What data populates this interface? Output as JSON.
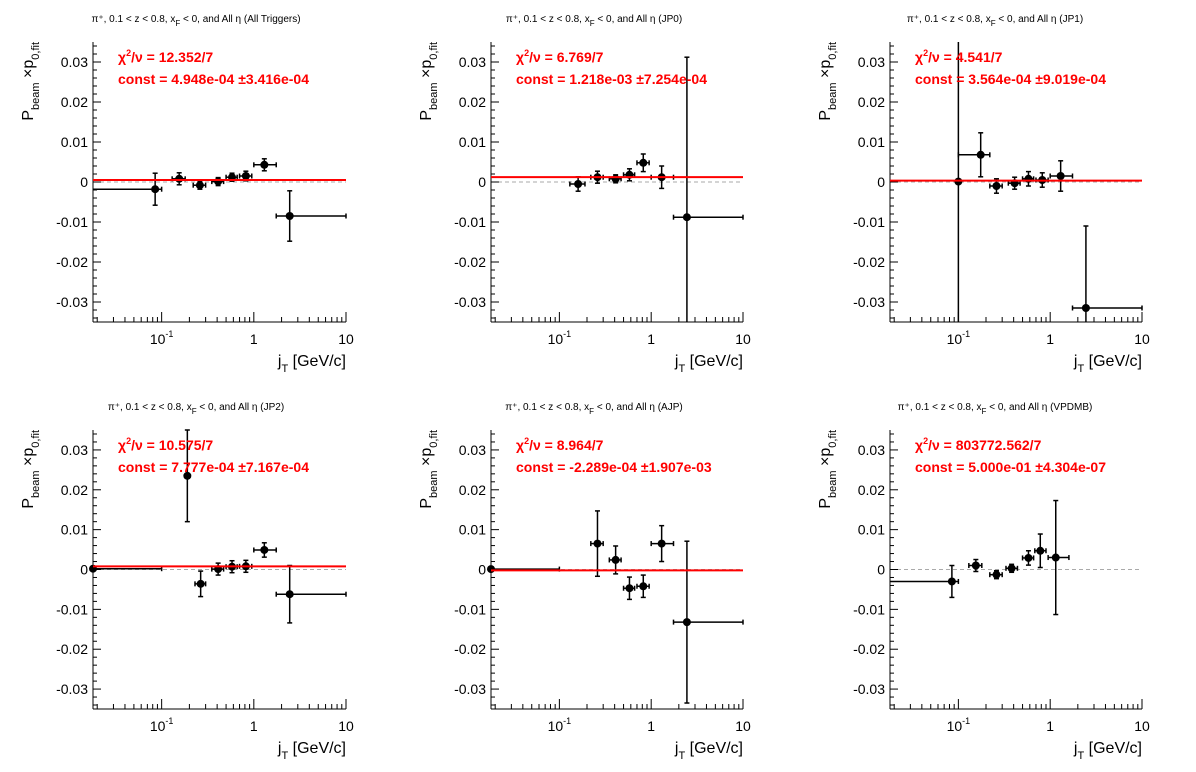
{
  "colors": {
    "axis": "#000000",
    "points": "#000000",
    "fit": "#ff0000",
    "zero_line": "#aaaaaa",
    "fit_text": "#ff0000",
    "background": "#ffffff"
  },
  "chart_data": [
    {
      "type": "scatter",
      "title": "π⁺, 0.1 < z < 0.8, x_F < 0, and All η (All Triggers)",
      "title_parts": {
        "prefix": "π⁺, 0.1 < z < 0.8, x",
        "sub": "F",
        "suffix": " < 0, and All  η (All Triggers)"
      },
      "xlabel": "j_T [GeV/c]",
      "ylabel": "P_beam × p_0,fit",
      "x_scale": "log",
      "xlim": [
        0.018,
        10
      ],
      "ylim": [
        -0.035,
        0.035
      ],
      "x_ticks": [
        "10⁻¹",
        "1",
        "10"
      ],
      "y_ticks": [
        "-0.03",
        "-0.02",
        "-0.01",
        "0",
        "0.01",
        "0.02",
        "0.03"
      ],
      "fit_text": {
        "chi2": "χ²/ν = 12.352/7",
        "const": "const = 4.948e-04  ±3.416e-04"
      },
      "fit_value": 0.0004948,
      "points": [
        {
          "x": 0.085,
          "xlo": 0.018,
          "xhi": 0.1,
          "y": -0.0018,
          "ey": 0.004
        },
        {
          "x": 0.155,
          "xlo": 0.13,
          "xhi": 0.18,
          "y": 0.0008,
          "ey": 0.0015
        },
        {
          "x": 0.26,
          "xlo": 0.22,
          "xhi": 0.3,
          "y": -0.0008,
          "ey": 0.001
        },
        {
          "x": 0.41,
          "xlo": 0.35,
          "xhi": 0.47,
          "y": 0.0001,
          "ey": 0.001
        },
        {
          "x": 0.58,
          "xlo": 0.5,
          "xhi": 0.66,
          "y": 0.0012,
          "ey": 0.001
        },
        {
          "x": 0.82,
          "xlo": 0.7,
          "xhi": 0.95,
          "y": 0.0015,
          "ey": 0.0012
        },
        {
          "x": 1.3,
          "xlo": 1.0,
          "xhi": 1.75,
          "y": 0.0043,
          "ey": 0.0015
        },
        {
          "x": 2.45,
          "xlo": 1.75,
          "xhi": 10,
          "y": -0.0085,
          "ey": 0.0063
        }
      ]
    },
    {
      "type": "scatter",
      "title": "π⁺, 0.1 < z < 0.8, x_F < 0, and All η (JP0)",
      "title_parts": {
        "prefix": "π⁺, 0.1 < z < 0.8, x",
        "sub": "F",
        "suffix": " < 0, and All  η (JP0)"
      },
      "xlabel": "j_T [GeV/c]",
      "ylabel": "P_beam × p_0,fit",
      "x_scale": "log",
      "xlim": [
        0.018,
        10
      ],
      "ylim": [
        -0.035,
        0.035
      ],
      "x_ticks": [
        "10⁻¹",
        "1",
        "10"
      ],
      "y_ticks": [
        "-0.03",
        "-0.02",
        "-0.01",
        "0",
        "0.01",
        "0.02",
        "0.03"
      ],
      "fit_text": {
        "chi2": "χ²/ν = 6.769/7",
        "const": "const = 1.218e-03  ±7.254e-04"
      },
      "fit_value": 0.001218,
      "points": [
        {
          "x": 0.16,
          "xlo": 0.13,
          "xhi": 0.19,
          "y": -0.0005,
          "ey": 0.0018
        },
        {
          "x": 0.26,
          "xlo": 0.22,
          "xhi": 0.3,
          "y": 0.0012,
          "ey": 0.0015
        },
        {
          "x": 0.41,
          "xlo": 0.35,
          "xhi": 0.47,
          "y": 0.0008,
          "ey": 0.001
        },
        {
          "x": 0.58,
          "xlo": 0.5,
          "xhi": 0.66,
          "y": 0.0018,
          "ey": 0.0015
        },
        {
          "x": 0.82,
          "xlo": 0.7,
          "xhi": 0.95,
          "y": 0.0048,
          "ey": 0.0022
        },
        {
          "x": 1.3,
          "xlo": 1.0,
          "xhi": 1.75,
          "y": 0.0012,
          "ey": 0.0028
        },
        {
          "x": 2.45,
          "xlo": 1.75,
          "xhi": 10,
          "y": -0.0088,
          "ey": 0.04
        }
      ]
    },
    {
      "type": "scatter",
      "title": "π⁺, 0.1 < z < 0.8, x_F < 0, and All η (JP1)",
      "title_parts": {
        "prefix": "π⁺, 0.1 < z < 0.8, x",
        "sub": "F",
        "suffix": " < 0, and All  η (JP1)"
      },
      "xlabel": "j_T [GeV/c]",
      "ylabel": "P_beam × p_0,fit",
      "x_scale": "log",
      "xlim": [
        0.018,
        10
      ],
      "ylim": [
        -0.035,
        0.035
      ],
      "x_ticks": [
        "10⁻¹",
        "1",
        "10"
      ],
      "y_ticks": [
        "-0.03",
        "-0.02",
        "-0.01",
        "0",
        "0.01",
        "0.02",
        "0.03"
      ],
      "fit_text": {
        "chi2": "χ²/ν = 4.541/7",
        "const": "const = 3.564e-04  ±9.019e-04"
      },
      "fit_value": 0.0003564,
      "points": [
        {
          "x": 0.1,
          "xlo": 0.1,
          "xhi": 0.1,
          "y": 0.0001,
          "ey": 0.04
        },
        {
          "x": 0.175,
          "xlo": 0.1,
          "xhi": 0.22,
          "y": 0.0068,
          "ey": 0.0055
        },
        {
          "x": 0.26,
          "xlo": 0.22,
          "xhi": 0.3,
          "y": -0.001,
          "ey": 0.0018
        },
        {
          "x": 0.41,
          "xlo": 0.35,
          "xhi": 0.47,
          "y": -0.0003,
          "ey": 0.0015
        },
        {
          "x": 0.58,
          "xlo": 0.5,
          "xhi": 0.66,
          "y": 0.0008,
          "ey": 0.0018
        },
        {
          "x": 0.82,
          "xlo": 0.7,
          "xhi": 0.95,
          "y": 0.0005,
          "ey": 0.0018
        },
        {
          "x": 1.3,
          "xlo": 1.0,
          "xhi": 1.75,
          "y": 0.0015,
          "ey": 0.0038
        },
        {
          "x": 2.45,
          "xlo": 1.75,
          "xhi": 10,
          "y": -0.0315,
          "ey": 0.0205
        }
      ]
    },
    {
      "type": "scatter",
      "title": "π⁺, 0.1 < z < 0.8, x_F < 0, and All η (JP2)",
      "title_parts": {
        "prefix": "π⁺, 0.1 < z < 0.8, x",
        "sub": "F",
        "suffix": " < 0, and All  η (JP2)"
      },
      "xlabel": "j_T [GeV/c]",
      "ylabel": "P_beam × p_0,fit",
      "x_scale": "log",
      "xlim": [
        0.018,
        10
      ],
      "ylim": [
        -0.035,
        0.035
      ],
      "x_ticks": [
        "10⁻¹",
        "1",
        "10"
      ],
      "y_ticks": [
        "-0.03",
        "-0.02",
        "-0.01",
        "0",
        "0.01",
        "0.02",
        "0.03"
      ],
      "fit_text": {
        "chi2": "χ²/ν = 10.575/7",
        "const": "const = 7.777e-04  ±7.167e-04"
      },
      "fit_value": 0.0007777,
      "points": [
        {
          "x": 0.018,
          "xlo": 0.018,
          "xhi": 0.1,
          "y": 0.0002,
          "ey": 0.0
        },
        {
          "x": 0.19,
          "xlo": 0.19,
          "xhi": 0.19,
          "y": 0.0235,
          "ey": 0.0115
        },
        {
          "x": 0.265,
          "xlo": 0.23,
          "xhi": 0.3,
          "y": -0.0036,
          "ey": 0.0032
        },
        {
          "x": 0.41,
          "xlo": 0.35,
          "xhi": 0.47,
          "y": 0.0001,
          "ey": 0.0015
        },
        {
          "x": 0.58,
          "xlo": 0.5,
          "xhi": 0.66,
          "y": 0.0007,
          "ey": 0.0015
        },
        {
          "x": 0.82,
          "xlo": 0.7,
          "xhi": 0.95,
          "y": 0.0008,
          "ey": 0.0015
        },
        {
          "x": 1.3,
          "xlo": 1.0,
          "xhi": 1.75,
          "y": 0.0049,
          "ey": 0.0018
        },
        {
          "x": 2.45,
          "xlo": 1.75,
          "xhi": 10,
          "y": -0.0062,
          "ey": 0.0072
        }
      ]
    },
    {
      "type": "scatter",
      "title": "π⁺, 0.1 < z < 0.8, x_F < 0, and All η (AJP)",
      "title_parts": {
        "prefix": "π⁺, 0.1 < z < 0.8, x",
        "sub": "F",
        "suffix": " < 0, and All  η (AJP)"
      },
      "xlabel": "j_T [GeV/c]",
      "ylabel": "P_beam × p_0,fit",
      "x_scale": "log",
      "xlim": [
        0.018,
        10
      ],
      "ylim": [
        -0.035,
        0.035
      ],
      "x_ticks": [
        "10⁻¹",
        "1",
        "10"
      ],
      "y_ticks": [
        "-0.03",
        "-0.02",
        "-0.01",
        "0",
        "0.01",
        "0.02",
        "0.03"
      ],
      "fit_text": {
        "chi2": "χ²/ν = 8.964/7",
        "const": "const = -2.289e-04  ±1.907e-03"
      },
      "fit_value": -0.0002289,
      "points": [
        {
          "x": 0.018,
          "xlo": 0.018,
          "xhi": 0.1,
          "y": 0.0001,
          "ey": 0.0
        },
        {
          "x": 0.26,
          "xlo": 0.22,
          "xhi": 0.3,
          "y": 0.0065,
          "ey": 0.0082
        },
        {
          "x": 0.41,
          "xlo": 0.35,
          "xhi": 0.47,
          "y": 0.0024,
          "ey": 0.0035
        },
        {
          "x": 0.58,
          "xlo": 0.5,
          "xhi": 0.66,
          "y": -0.0047,
          "ey": 0.0028
        },
        {
          "x": 0.82,
          "xlo": 0.7,
          "xhi": 0.95,
          "y": -0.0042,
          "ey": 0.0028
        },
        {
          "x": 1.3,
          "xlo": 1.0,
          "xhi": 1.75,
          "y": 0.0065,
          "ey": 0.0045
        },
        {
          "x": 2.45,
          "xlo": 1.75,
          "xhi": 10,
          "y": -0.0132,
          "ey": 0.0203
        }
      ]
    },
    {
      "type": "scatter",
      "title": "π⁺, 0.1 < z < 0.8, x_F < 0, and All η (VPDMB)",
      "title_parts": {
        "prefix": "π⁺, 0.1 < z < 0.8, x",
        "sub": "F",
        "suffix": " < 0, and All  η (VPDMB)"
      },
      "xlabel": "j_T [GeV/c]",
      "ylabel": "P_beam × p_0,fit",
      "x_scale": "log",
      "xlim": [
        0.018,
        10
      ],
      "ylim": [
        -0.035,
        0.035
      ],
      "x_ticks": [
        "10⁻¹",
        "1",
        "10"
      ],
      "y_ticks": [
        "-0.03",
        "-0.02",
        "-0.01",
        "0",
        "0.01",
        "0.02",
        "0.03"
      ],
      "fit_text": {
        "chi2": "χ²/ν = 803772.562/7",
        "const": "const = 5.000e-01  ±4.304e-07"
      },
      "fit_value": 0.5,
      "points": [
        {
          "x": 0.085,
          "xlo": 0.018,
          "xhi": 0.1,
          "y": -0.003,
          "ey": 0.004
        },
        {
          "x": 0.155,
          "xlo": 0.13,
          "xhi": 0.18,
          "y": 0.001,
          "ey": 0.0015
        },
        {
          "x": 0.26,
          "xlo": 0.22,
          "xhi": 0.3,
          "y": -0.0013,
          "ey": 0.001
        },
        {
          "x": 0.38,
          "xlo": 0.33,
          "xhi": 0.44,
          "y": 0.0003,
          "ey": 0.001
        },
        {
          "x": 0.58,
          "xlo": 0.5,
          "xhi": 0.66,
          "y": 0.0029,
          "ey": 0.0018
        },
        {
          "x": 0.78,
          "xlo": 0.68,
          "xhi": 0.9,
          "y": 0.0047,
          "ey": 0.0042
        },
        {
          "x": 1.15,
          "xlo": 0.95,
          "xhi": 1.6,
          "y": 0.003,
          "ey": 0.0143
        }
      ]
    }
  ]
}
